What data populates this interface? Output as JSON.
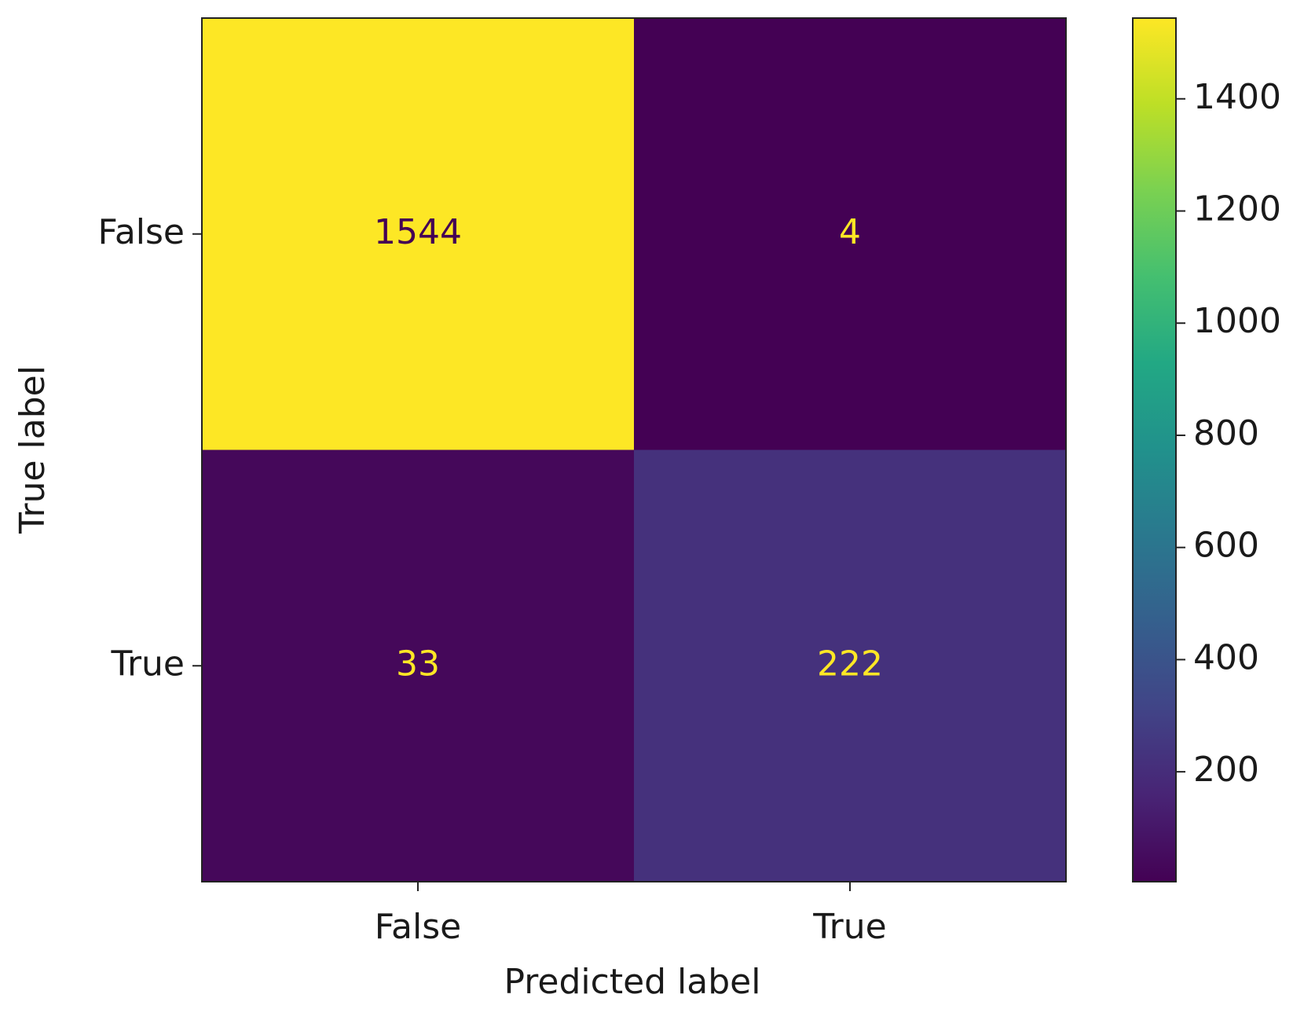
{
  "chart_data": {
    "type": "heatmap",
    "x_categories": [
      "False",
      "True"
    ],
    "y_categories": [
      "False",
      "True"
    ],
    "values": [
      [
        1544,
        4
      ],
      [
        33,
        222
      ]
    ],
    "xlabel": "Predicted label",
    "ylabel": "True label",
    "colormap": "viridis",
    "colorbar_lim": [
      4,
      1544
    ],
    "colorbar_ticks": [
      200,
      400,
      600,
      800,
      1000,
      1200,
      1400
    ]
  }
}
